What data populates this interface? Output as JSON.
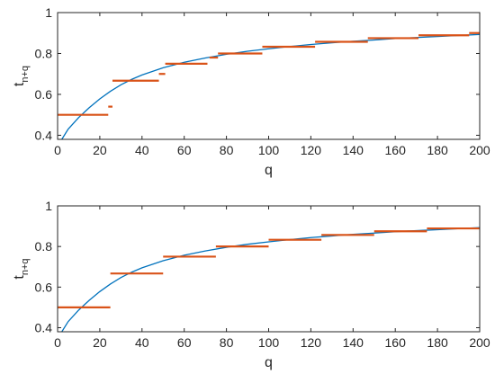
{
  "chart_data": [
    {
      "type": "line",
      "xlabel": "q",
      "ylabel_main": "t",
      "ylabel_sub": "n+q",
      "xlim": [
        0,
        200
      ],
      "ylim": [
        0.38,
        1.0
      ],
      "xticks": [
        0,
        20,
        40,
        60,
        80,
        100,
        120,
        140,
        160,
        180,
        200
      ],
      "xtick_labels": [
        "0",
        "20",
        "40",
        "60",
        "80",
        "100",
        "120",
        "140",
        "160",
        "180",
        "200"
      ],
      "yticks": [
        0.4,
        0.6,
        0.8,
        1.0
      ],
      "ytick_labels": [
        "0.4",
        "0.6",
        "0.8",
        "1"
      ],
      "grid": false,
      "series": [
        {
          "kind": "curve",
          "color": "#0072BD",
          "x": [
            2,
            5,
            10,
            15,
            20,
            25,
            30,
            35,
            40,
            50,
            60,
            70,
            80,
            90,
            100,
            110,
            120,
            130,
            140,
            150,
            160,
            170,
            180,
            190,
            200
          ],
          "y": [
            0.38,
            0.43,
            0.487,
            0.535,
            0.578,
            0.615,
            0.647,
            0.673,
            0.695,
            0.73,
            0.757,
            0.778,
            0.796,
            0.811,
            0.823,
            0.834,
            0.844,
            0.852,
            0.86,
            0.866,
            0.873,
            0.878,
            0.883,
            0.888,
            0.893
          ]
        },
        {
          "kind": "steps",
          "color": "#D95319",
          "segments": [
            {
              "x0": 0,
              "x1": 24,
              "y": 0.5
            },
            {
              "x0": 24,
              "x1": 26,
              "y": 0.54
            },
            {
              "x0": 26,
              "x1": 48,
              "y": 0.667
            },
            {
              "x0": 48,
              "x1": 51,
              "y": 0.7
            },
            {
              "x0": 51,
              "x1": 71,
              "y": 0.75
            },
            {
              "x0": 72,
              "x1": 76,
              "y": 0.78
            },
            {
              "x0": 76,
              "x1": 97,
              "y": 0.8
            },
            {
              "x0": 97,
              "x1": 122,
              "y": 0.833
            },
            {
              "x0": 122,
              "x1": 147,
              "y": 0.857
            },
            {
              "x0": 147,
              "x1": 171,
              "y": 0.875
            },
            {
              "x0": 171,
              "x1": 195,
              "y": 0.889
            },
            {
              "x0": 195,
              "x1": 200,
              "y": 0.9
            }
          ]
        }
      ]
    },
    {
      "type": "line",
      "xlabel": "q",
      "ylabel_main": "t",
      "ylabel_sub": "n+q",
      "xlim": [
        0,
        200
      ],
      "ylim": [
        0.38,
        1.0
      ],
      "xticks": [
        0,
        20,
        40,
        60,
        80,
        100,
        120,
        140,
        160,
        180,
        200
      ],
      "xtick_labels": [
        "0",
        "20",
        "40",
        "60",
        "80",
        "100",
        "120",
        "140",
        "160",
        "180",
        "200"
      ],
      "yticks": [
        0.4,
        0.6,
        0.8,
        1.0
      ],
      "ytick_labels": [
        "0.4",
        "0.6",
        "0.8",
        "1"
      ],
      "grid": false,
      "series": [
        {
          "kind": "curve",
          "color": "#0072BD",
          "x": [
            2,
            5,
            10,
            15,
            20,
            25,
            30,
            35,
            40,
            50,
            60,
            70,
            80,
            90,
            100,
            110,
            120,
            130,
            140,
            150,
            160,
            170,
            180,
            190,
            200
          ],
          "y": [
            0.38,
            0.43,
            0.487,
            0.535,
            0.578,
            0.615,
            0.647,
            0.673,
            0.695,
            0.73,
            0.757,
            0.778,
            0.796,
            0.811,
            0.823,
            0.834,
            0.844,
            0.852,
            0.86,
            0.866,
            0.873,
            0.878,
            0.883,
            0.888,
            0.893
          ]
        },
        {
          "kind": "steps",
          "color": "#D95319",
          "segments": [
            {
              "x0": 0,
              "x1": 25,
              "y": 0.5
            },
            {
              "x0": 25,
              "x1": 50,
              "y": 0.667
            },
            {
              "x0": 50,
              "x1": 75,
              "y": 0.75
            },
            {
              "x0": 75,
              "x1": 100,
              "y": 0.8
            },
            {
              "x0": 100,
              "x1": 125,
              "y": 0.833
            },
            {
              "x0": 125,
              "x1": 150,
              "y": 0.857
            },
            {
              "x0": 150,
              "x1": 175,
              "y": 0.875
            },
            {
              "x0": 175,
              "x1": 200,
              "y": 0.889
            }
          ]
        }
      ]
    }
  ]
}
